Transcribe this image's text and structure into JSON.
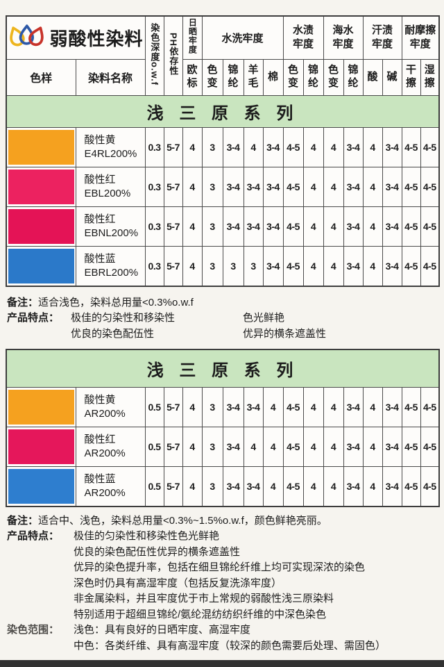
{
  "brand": {
    "title": "弱酸性染料"
  },
  "header": {
    "sample": "色样",
    "name": "染料名称",
    "depth": "染色深度o.w.f",
    "ph": "PH依存性",
    "light_group": "日晒牢度",
    "light_sub": "欧标",
    "wash_group": "水洗牢度",
    "wash_subs": [
      "色变",
      "锦纶",
      "羊毛",
      "棉"
    ],
    "stain_group": "水渍牢度",
    "stain_subs": [
      "色变",
      "锦纶"
    ],
    "sea_group": "海水牢度",
    "sea_subs": [
      "色变",
      "锦纶"
    ],
    "sweat_group": "汗渍牢度",
    "sweat_subs": [
      "酸",
      "碱"
    ],
    "rub_group": "耐摩擦牢度",
    "rub_subs": [
      "干擦",
      "湿擦"
    ]
  },
  "table1": {
    "banner": "浅 三 原 系 列",
    "rows": [
      {
        "name_line1": "酸性黄",
        "name_line2": "E4RL200%",
        "swatch": "#F5A11F",
        "values": [
          "0.3",
          "5-7",
          "4",
          "3",
          "3-4",
          "4",
          "3-4",
          "4-5",
          "4",
          "4",
          "3-4",
          "4",
          "3-4",
          "4-5",
          "4-5"
        ]
      },
      {
        "name_line1": "酸性红",
        "name_line2": "EBL200%",
        "swatch": "#EC2260",
        "values": [
          "0.3",
          "5-7",
          "4",
          "3",
          "3-4",
          "3-4",
          "3-4",
          "4-5",
          "4",
          "4",
          "3-4",
          "4",
          "3-4",
          "4-5",
          "4-5"
        ]
      },
      {
        "name_line1": "酸性红",
        "name_line2": "EBNL200%",
        "swatch": "#E41356",
        "values": [
          "0.3",
          "5-7",
          "4",
          "3",
          "3-4",
          "3-4",
          "3-4",
          "4-5",
          "4",
          "4",
          "3-4",
          "4",
          "3-4",
          "4-5",
          "4-5"
        ]
      },
      {
        "name_line1": "酸性蓝",
        "name_line2": "EBRL200%",
        "swatch": "#2B79C9",
        "values": [
          "0.3",
          "5-7",
          "4",
          "3",
          "3",
          "3",
          "3-4",
          "4-5",
          "4",
          "4",
          "3-4",
          "4",
          "3-4",
          "4-5",
          "4-5"
        ]
      }
    ]
  },
  "notes1": {
    "remark_label": "备注：",
    "remark": "适合浅色，染料总用量<0.3%o.w.f",
    "features_label": "产品特点：",
    "feature_left_1": "极佳的匀染性和移染性",
    "feature_left_2": "优良的染色配伍性",
    "feature_right_1": "色光鲜艳",
    "feature_right_2": "优异的横条遮盖性"
  },
  "table2": {
    "banner": "浅 三 原 系 列",
    "rows": [
      {
        "name_line1": "酸性黄",
        "name_line2": "AR200%",
        "swatch": "#F5A11F",
        "values": [
          "0.5",
          "5-7",
          "4",
          "3",
          "3-4",
          "3-4",
          "4",
          "4-5",
          "4",
          "4",
          "3-4",
          "4",
          "3-4",
          "4-5",
          "4-5"
        ]
      },
      {
        "name_line1": "酸性红",
        "name_line2": "AR200%",
        "swatch": "#E5175B",
        "values": [
          "0.5",
          "5-7",
          "4",
          "3",
          "3-4",
          "4",
          "4",
          "4-5",
          "4",
          "4",
          "3-4",
          "4",
          "3-4",
          "4-5",
          "4-5"
        ]
      },
      {
        "name_line1": "酸性蓝",
        "name_line2": "AR200%",
        "swatch": "#2E7ECF",
        "values": [
          "0.5",
          "5-7",
          "4",
          "3",
          "3-4",
          "3-4",
          "4",
          "4-5",
          "4",
          "4",
          "3-4",
          "4",
          "3-4",
          "4-5",
          "4-5"
        ]
      }
    ]
  },
  "notes2": {
    "remark_label": "备注：",
    "remark": "适合中、浅色，染料总用量<0.3%~1.5%o.w.f，颜色鲜艳亮丽。",
    "features_label": "产品特点：",
    "features": [
      "极佳的匀染性和移染性色光鲜艳",
      "优良的染色配伍性优异的横条遮盖性",
      "优异的染色提升率，包括在细旦锦纶纤维上均可实现深浓的染色",
      "深色时仍具有高湿牢度（包括反复洗涤牢度）",
      "非金属染料，并且牢度优于市上常规的弱酸性浅三原染料",
      "特别适用于超细旦锦纶/氨纶混纺纺织纤维的中深色染色"
    ],
    "range_label": "染色范围：",
    "ranges": [
      "浅色：具有良好的日晒牢度、高湿牢度",
      "中色：各类纤维、具有高湿牢度（较深的颜色需要后处理、需固色）"
    ]
  },
  "colors": {
    "banner_green": "#C9E5BF",
    "logo_yellow": "#EDB51F",
    "logo_blue": "#2E59A7",
    "logo_red": "#C8332A"
  }
}
